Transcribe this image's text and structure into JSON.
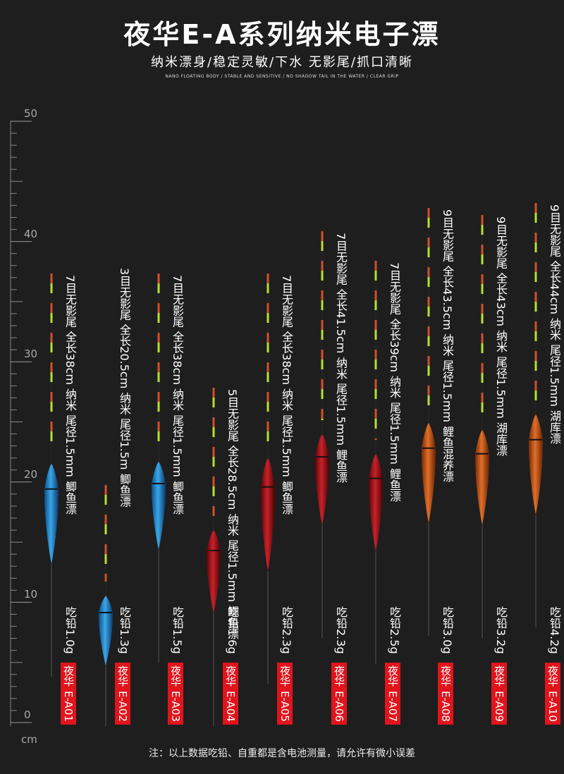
{
  "header": {
    "title": "夜华E-A系列纳米电子漂",
    "subtitle": "纳米漂身/稳定灵敏/下水 无影尾/抓口清晰",
    "subtitle_en": "NANO FLOATING BODY / STABLE AND SENSITIVE / NO SHADOW TAIL IN THE WATER / CLEAR GRIP"
  },
  "ruler": {
    "ticks": [
      50,
      40,
      30,
      20,
      10,
      0
    ],
    "unit": "cm"
  },
  "floats": [
    {
      "spec": "7目无影尾 全长38cm 纳米 尾径1.5mm 鲫鱼漂",
      "lead": "吃铅1.0g",
      "brand": "夜华",
      "model": "E-A01"
    },
    {
      "spec": "3目无影尾 全长20.5cm 纳米 尾径1.5m 鲫鱼漂",
      "lead": "吃铅1.3g",
      "brand": "夜华",
      "model": "E-A02"
    },
    {
      "spec": "7目无影尾 全长38cm 纳米 尾径1.5mm 鲫鱼漂",
      "lead": "吃铅1.5g",
      "brand": "夜华",
      "model": "E-A03"
    },
    {
      "spec": "5目无影尾 全长28.5cm 纳米 尾径1.5mm 鲫鱼漂",
      "lead": "吃铅1.6g",
      "brand": "夜华",
      "model": "E-A04"
    },
    {
      "spec": "7目无影尾 全长38cm 纳米 尾径1.5mm 鲫鱼漂",
      "lead": "吃铅2.3g",
      "brand": "夜华",
      "model": "E-A05"
    },
    {
      "spec": "7目无影尾 全长41.5cm 纳米 尾径1.5mm 鲤鱼漂",
      "lead": "吃铅2.3g",
      "brand": "夜华",
      "model": "E-A06"
    },
    {
      "spec": "7目无影尾 全长39cm 纳米 尾径1.5mm 鲤鱼漂",
      "lead": "吃铅2.5g",
      "brand": "夜华",
      "model": "E-A07"
    },
    {
      "spec": "9目无影尾 全长43.5cm 纳米 尾径1.5mm 鲤鱼混养漂",
      "lead": "吃铅3.0g",
      "brand": "夜华",
      "model": "E-A08"
    },
    {
      "spec": "9目无影尾 全长43cm 纳米 尾径1.5mm 湖库漂",
      "lead": "吃铅3.2g",
      "brand": "夜华",
      "model": "E-A09"
    },
    {
      "spec": "9目无影尾 全长44cm 纳米 尾径1.5mm 湖库漂",
      "lead": "吃铅4.2g",
      "brand": "夜华",
      "model": "E-A10"
    }
  ],
  "footer": {
    "note": "注：以上数据吃铅、自重都是含电池测量，请允许有微小误差"
  }
}
